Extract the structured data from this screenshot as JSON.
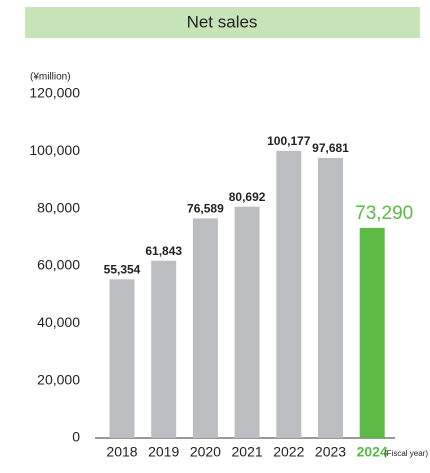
{
  "chart_data": {
    "type": "bar",
    "title": "Net sales",
    "y_unit_label": "(¥million)",
    "x_axis_label": "(Fiscal year)",
    "categories": [
      "2018",
      "2019",
      "2020",
      "2021",
      "2022",
      "2023",
      "2024"
    ],
    "values": [
      55354,
      61843,
      76589,
      80692,
      100177,
      97681,
      73290
    ],
    "value_labels": [
      "55,354",
      "61,843",
      "76,589",
      "80,692",
      "100,177",
      "97,681",
      "73,290"
    ],
    "colors": [
      "#bcbdc0",
      "#bcbdc0",
      "#bcbdc0",
      "#bcbdc0",
      "#bcbdc0",
      "#bcbdc0",
      "#5cb946"
    ],
    "highlight_color": "#5cb946",
    "ylim": [
      0,
      120000
    ],
    "yticks": [
      0,
      {
        "value": 20000,
        "label": "20,000"
      },
      {
        "value": 40000,
        "label": "40,000"
      },
      {
        "value": 60000,
        "label": "60,000"
      },
      {
        "value": 80000,
        "label": "80,000"
      },
      {
        "value": 100000,
        "label": "100,000"
      },
      {
        "value": 120000,
        "label": "120,000"
      }
    ],
    "grid": false
  }
}
